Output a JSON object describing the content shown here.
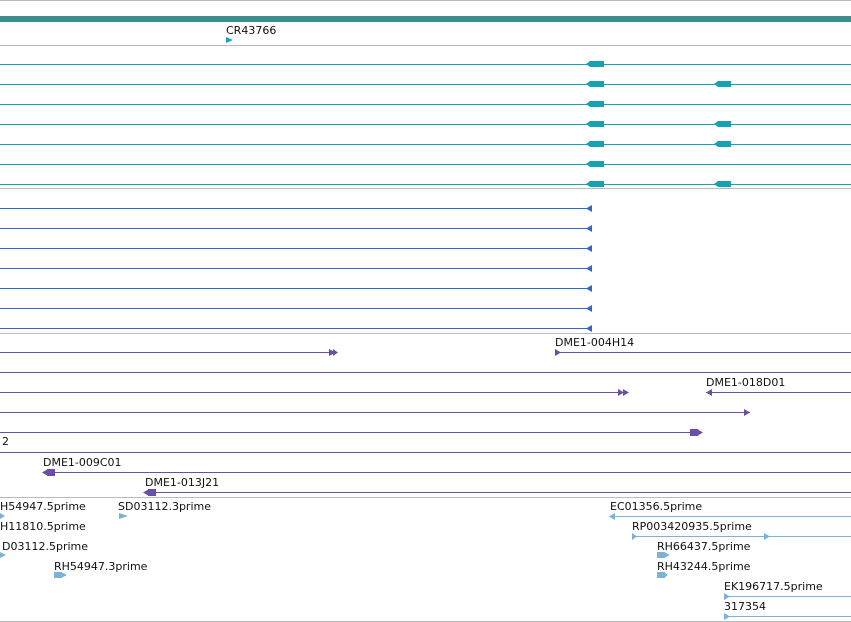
{
  "colors": {
    "top_bar": "#3c8e8e",
    "gene": "#1aa0b4",
    "transcript_blue": "#3366cc",
    "clone_purple": "#6a4fa8",
    "est_light": "#7ab2d8",
    "separator": "#bbbbbb"
  },
  "gene_track": {
    "label": "CR43766",
    "icon": "arrow-right-icon"
  },
  "clone_track": {
    "labels": [
      "DME1-004H14",
      "DME1-018D01",
      "2",
      "DME1-009C01",
      "DME1-013J21"
    ]
  },
  "est_track": {
    "labels": [
      "H54947.5prime",
      "SD03112.3prime",
      "EC01356.5prime",
      "H11810.5prime",
      "RP003420935.5prime",
      "D03112.5prime",
      "RH66437.5prime",
      "RH54947.3prime",
      "RH43244.5prime",
      "EK196717.5prime",
      "317354"
    ]
  }
}
